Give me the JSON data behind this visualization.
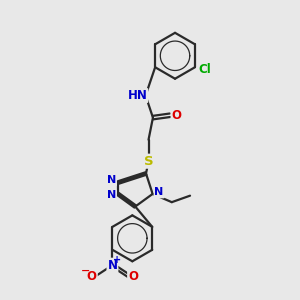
{
  "bg_color": "#e8e8e8",
  "bond_color": "#2a2a2a",
  "bond_width": 1.6,
  "atom_colors": {
    "N": "#0000cc",
    "O": "#dd0000",
    "S": "#bbbb00",
    "Cl": "#00aa00",
    "C": "#2a2a2a",
    "H": "#2a2a2a"
  },
  "fs": 8.5
}
